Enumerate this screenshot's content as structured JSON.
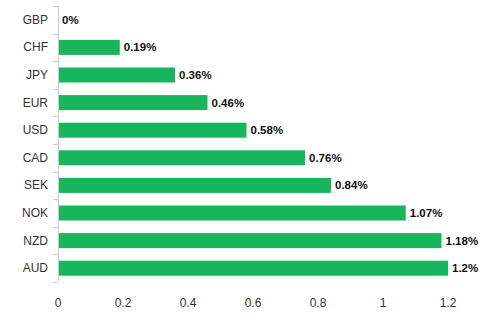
{
  "chart_data": {
    "type": "bar",
    "orientation": "horizontal",
    "categories": [
      "GBP",
      "CHF",
      "JPY",
      "EUR",
      "USD",
      "CAD",
      "SEK",
      "NOK",
      "NZD",
      "AUD"
    ],
    "values": [
      0,
      0.19,
      0.36,
      0.46,
      0.58,
      0.76,
      0.84,
      1.07,
      1.18,
      1.2
    ],
    "value_labels": [
      "0%",
      "0.19%",
      "0.36%",
      "0.46%",
      "0.58%",
      "0.76%",
      "0.84%",
      "1.07%",
      "1.18%",
      "1.2%"
    ],
    "color": "#17b65c",
    "xlim": [
      0,
      1.2
    ],
    "xticks": [
      0,
      0.2,
      0.4,
      0.6,
      0.8,
      1,
      1.2
    ],
    "grid": false,
    "data_labels": true
  }
}
